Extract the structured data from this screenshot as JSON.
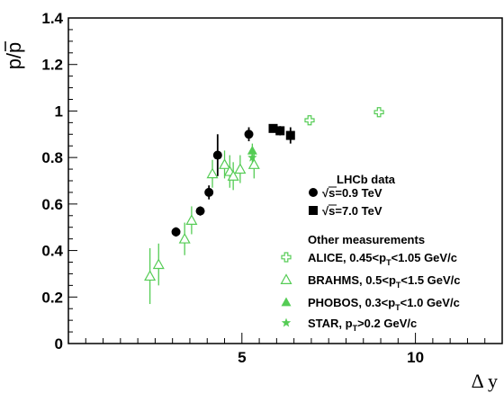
{
  "chart_data": {
    "type": "scatter",
    "title": "",
    "xlabel": "Δ y",
    "ylabel": "p/p",
    "xlim": [
      0,
      12.5
    ],
    "ylim": [
      0,
      1.4
    ],
    "x_ticks": [
      {
        "value": 5,
        "label": "5"
      },
      {
        "value": 10,
        "label": "10"
      }
    ],
    "y_ticks": [
      {
        "value": 0,
        "label": "0"
      },
      {
        "value": 0.2,
        "label": "0.2"
      },
      {
        "value": 0.4,
        "label": "0.4"
      },
      {
        "value": 0.6,
        "label": "0.6"
      },
      {
        "value": 0.8,
        "label": "0.8"
      },
      {
        "value": 1,
        "label": "1"
      },
      {
        "value": 1.2,
        "label": "1.2"
      },
      {
        "value": 1.4,
        "label": "1.4"
      }
    ],
    "grid": false,
    "legend_position": "bottom-right",
    "legend": {
      "lhcb_title": "LHCb data",
      "other_title": "Other measurements",
      "entries": [
        {
          "key": "lhcb09",
          "marker": "circle",
          "color": "#000000",
          "text": "√s=0.9 TeV"
        },
        {
          "key": "lhcb70",
          "marker": "square",
          "color": "#000000",
          "text": "√s=7.0 TeV"
        },
        {
          "key": "alice",
          "marker": "cross-open",
          "color": "#55cc55",
          "pre": "ALICE, 0.45<p",
          "sub": "T",
          "post": "<1.05 GeV/c"
        },
        {
          "key": "brahms",
          "marker": "triangle-open",
          "color": "#55cc55",
          "pre": "BRAHMS, 0.5<p",
          "sub": "T",
          "post": "<1.5 GeV/c"
        },
        {
          "key": "phobos",
          "marker": "triangle",
          "color": "#55cc55",
          "pre": "PHOBOS, 0.3<p",
          "sub": "T",
          "post": "<1.0 GeV/c"
        },
        {
          "key": "star",
          "marker": "star",
          "color": "#55cc55",
          "pre": "STAR, p",
          "sub": "T",
          "post": ">0.2 GeV/c"
        }
      ]
    },
    "series": [
      {
        "key": "lhcb09",
        "name": "√s=0.9 TeV",
        "marker": "circle",
        "color": "#000000",
        "points": [
          {
            "x": 3.1,
            "y": 0.48,
            "err": 0.02
          },
          {
            "x": 3.8,
            "y": 0.57,
            "err": 0.02
          },
          {
            "x": 4.05,
            "y": 0.65,
            "err": 0.03
          },
          {
            "x": 4.3,
            "y": 0.81,
            "err": 0.09
          },
          {
            "x": 5.2,
            "y": 0.9,
            "err": 0.03
          }
        ]
      },
      {
        "key": "lhcb70",
        "name": "√s=7.0 TeV",
        "marker": "square",
        "color": "#000000",
        "points": [
          {
            "x": 5.9,
            "y": 0.925,
            "err": 0.015
          },
          {
            "x": 6.1,
            "y": 0.915,
            "err": 0.02
          },
          {
            "x": 6.4,
            "y": 0.895,
            "err": 0.035
          }
        ]
      },
      {
        "key": "alice",
        "name": "ALICE",
        "marker": "cross-open",
        "color": "#55cc55",
        "points": [
          {
            "x": 6.95,
            "y": 0.96,
            "err": 0
          },
          {
            "x": 8.95,
            "y": 0.995,
            "err": 0
          }
        ]
      },
      {
        "key": "brahms",
        "name": "BRAHMS",
        "marker": "triangle-open",
        "color": "#55cc55",
        "points": [
          {
            "x": 2.35,
            "y": 0.29,
            "err": 0.12
          },
          {
            "x": 2.6,
            "y": 0.34,
            "err": 0.09
          },
          {
            "x": 3.35,
            "y": 0.45,
            "err": 0.07
          },
          {
            "x": 3.55,
            "y": 0.53,
            "err": 0.06
          },
          {
            "x": 4.15,
            "y": 0.73,
            "err": 0.06
          },
          {
            "x": 4.5,
            "y": 0.77,
            "err": 0.06
          },
          {
            "x": 4.65,
            "y": 0.74,
            "err": 0.07
          },
          {
            "x": 4.75,
            "y": 0.72,
            "err": 0.06
          },
          {
            "x": 4.95,
            "y": 0.75,
            "err": 0.06
          },
          {
            "x": 5.35,
            "y": 0.77,
            "err": 0.06
          }
        ]
      },
      {
        "key": "phobos",
        "name": "PHOBOS",
        "marker": "triangle",
        "color": "#55cc55",
        "points": [
          {
            "x": 5.3,
            "y": 0.83,
            "err": 0.03
          }
        ]
      },
      {
        "key": "star",
        "name": "STAR",
        "marker": "star",
        "color": "#55cc55",
        "points": [
          {
            "x": 5.3,
            "y": 0.8,
            "err": 0.02
          }
        ]
      }
    ]
  }
}
